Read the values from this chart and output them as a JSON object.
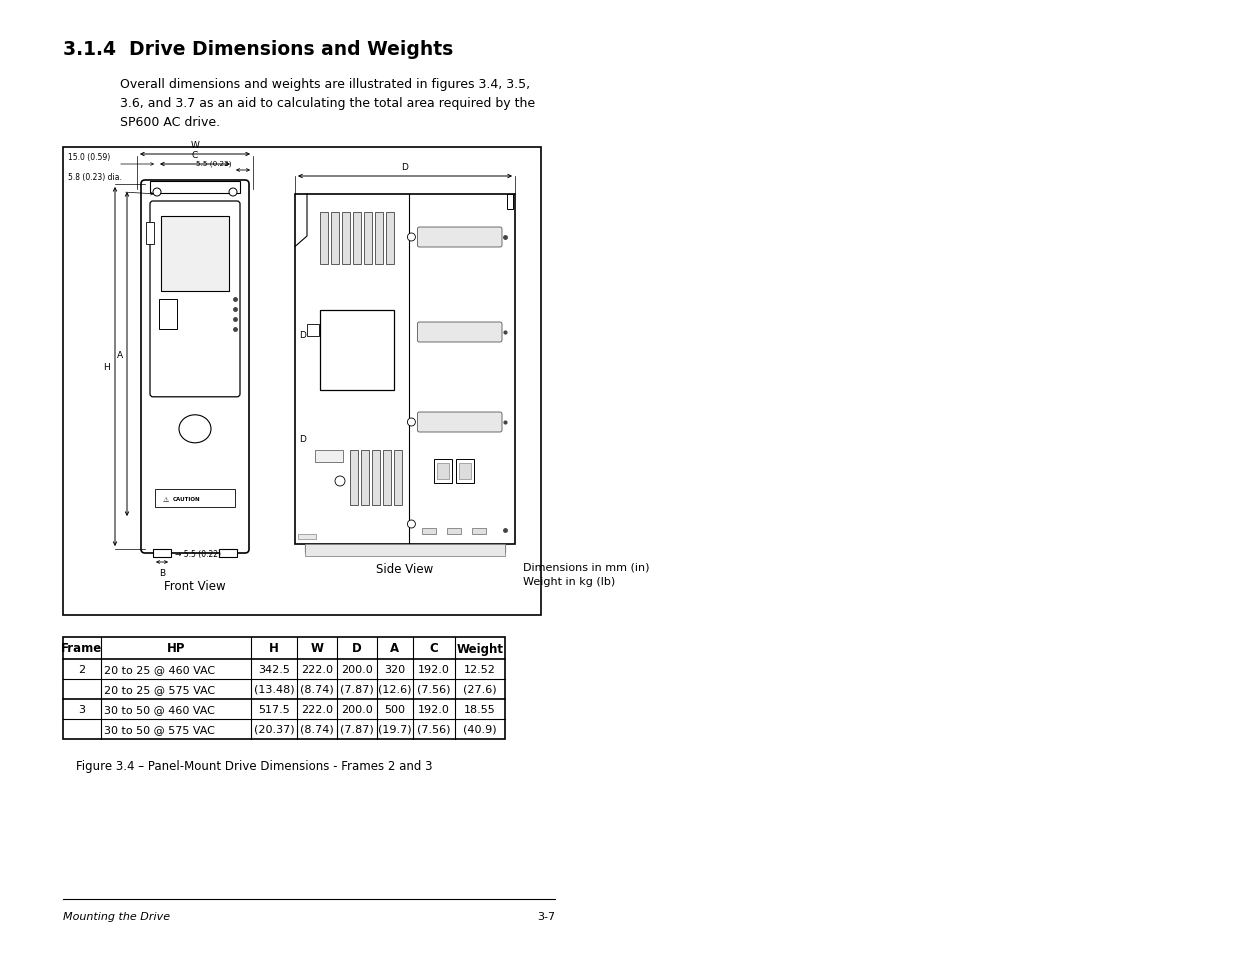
{
  "title": "3.1.4  Drive Dimensions and Weights",
  "intro_text": "Overall dimensions and weights are illustrated in figures 3.4, 3.5,\n3.6, and 3.7 as an aid to calculating the total area required by the\nSP600 AC drive.",
  "table_headers": [
    "Frame",
    "HP",
    "H",
    "W",
    "D",
    "A",
    "C",
    "Weight"
  ],
  "table_rows": [
    [
      "2",
      "20 to 25 @ 460 VAC",
      "342.5",
      "222.0",
      "200.0",
      "320",
      "192.0",
      "12.52"
    ],
    [
      "",
      "20 to 25 @ 575 VAC",
      "(13.48)",
      "(8.74)",
      "(7.87)",
      "(12.6)",
      "(7.56)",
      "(27.6)"
    ],
    [
      "3",
      "30 to 50 @ 460 VAC",
      "517.5",
      "222.0",
      "200.0",
      "500",
      "192.0",
      "18.55"
    ],
    [
      "",
      "30 to 50 @ 575 VAC",
      "(20.37)",
      "(8.74)",
      "(7.87)",
      "(19.7)",
      "(7.56)",
      "(40.9)"
    ]
  ],
  "figure_caption": "Figure 3.4 – Panel-Mount Drive Dimensions - Frames 2 and 3",
  "footer_left": "Mounting the Drive",
  "footer_right": "3-7",
  "bg_color": "#ffffff",
  "text_color": "#000000"
}
